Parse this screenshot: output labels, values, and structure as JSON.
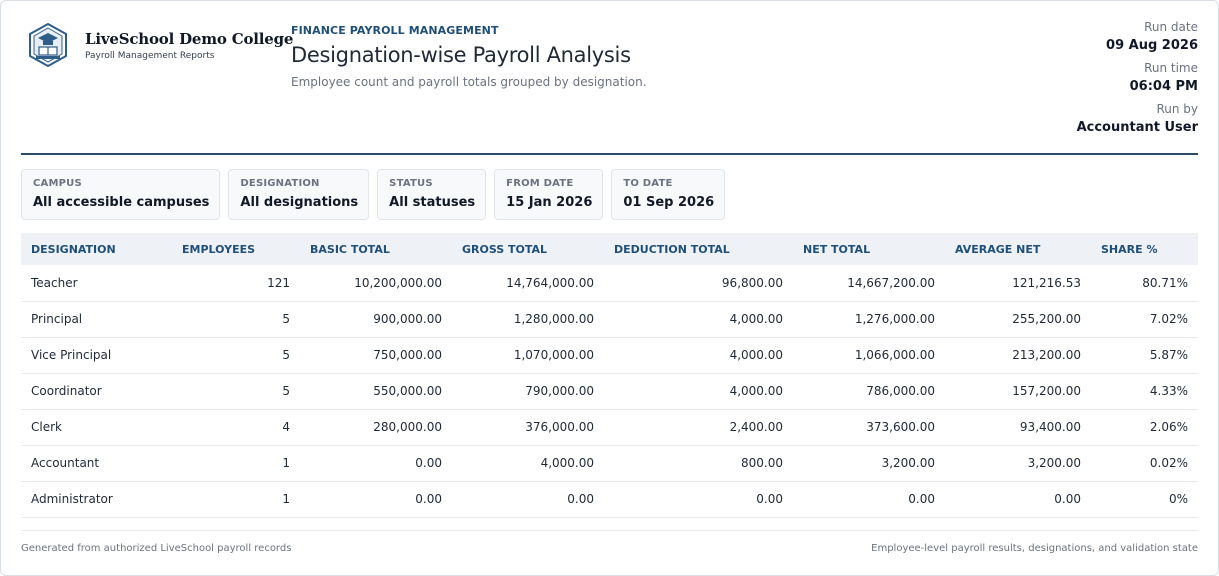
{
  "brand": {
    "college_name": "LiveSchool Demo College",
    "college_sub": "Payroll Management Reports",
    "logo_icon": "college-crest-icon"
  },
  "report": {
    "kicker": "FINANCE PAYROLL MANAGEMENT",
    "title": "Designation-wise Payroll Analysis",
    "subtitle": "Employee count and payroll totals grouped by designation."
  },
  "run": {
    "date_label": "Run date",
    "date_value": "09 Aug 2026",
    "time_label": "Run time",
    "time_value": "06:04 PM",
    "by_label": "Run by",
    "by_value": "Accountant User"
  },
  "filters": [
    {
      "label": "CAMPUS",
      "value": "All accessible campuses"
    },
    {
      "label": "DESIGNATION",
      "value": "All designations"
    },
    {
      "label": "STATUS",
      "value": "All statuses"
    },
    {
      "label": "FROM DATE",
      "value": "15 Jan 2026"
    },
    {
      "label": "TO DATE",
      "value": "01 Sep 2026"
    }
  ],
  "table": {
    "headers": [
      "DESIGNATION",
      "EMPLOYEES",
      "BASIC TOTAL",
      "GROSS TOTAL",
      "DEDUCTION TOTAL",
      "NET TOTAL",
      "AVERAGE NET",
      "SHARE %"
    ],
    "rows": [
      [
        "Teacher",
        "121",
        "10,200,000.00",
        "14,764,000.00",
        "96,800.00",
        "14,667,200.00",
        "121,216.53",
        "80.71%"
      ],
      [
        "Principal",
        "5",
        "900,000.00",
        "1,280,000.00",
        "4,000.00",
        "1,276,000.00",
        "255,200.00",
        "7.02%"
      ],
      [
        "Vice Principal",
        "5",
        "750,000.00",
        "1,070,000.00",
        "4,000.00",
        "1,066,000.00",
        "213,200.00",
        "5.87%"
      ],
      [
        "Coordinator",
        "5",
        "550,000.00",
        "790,000.00",
        "4,000.00",
        "786,000.00",
        "157,200.00",
        "4.33%"
      ],
      [
        "Clerk",
        "4",
        "280,000.00",
        "376,000.00",
        "2,400.00",
        "373,600.00",
        "93,400.00",
        "2.06%"
      ],
      [
        "Accountant",
        "1",
        "0.00",
        "4,000.00",
        "800.00",
        "3,200.00",
        "3,200.00",
        "0.02%"
      ],
      [
        "Administrator",
        "1",
        "0.00",
        "0.00",
        "0.00",
        "0.00",
        "0.00",
        "0%"
      ]
    ]
  },
  "footer": {
    "left": "Generated from authorized LiveSchool payroll records",
    "right": "Employee-level payroll results, designations, and validation state"
  },
  "colors": {
    "accent": "#1e4f7a",
    "divider": "#2c4a66",
    "header_bg": "#eef2f6"
  }
}
